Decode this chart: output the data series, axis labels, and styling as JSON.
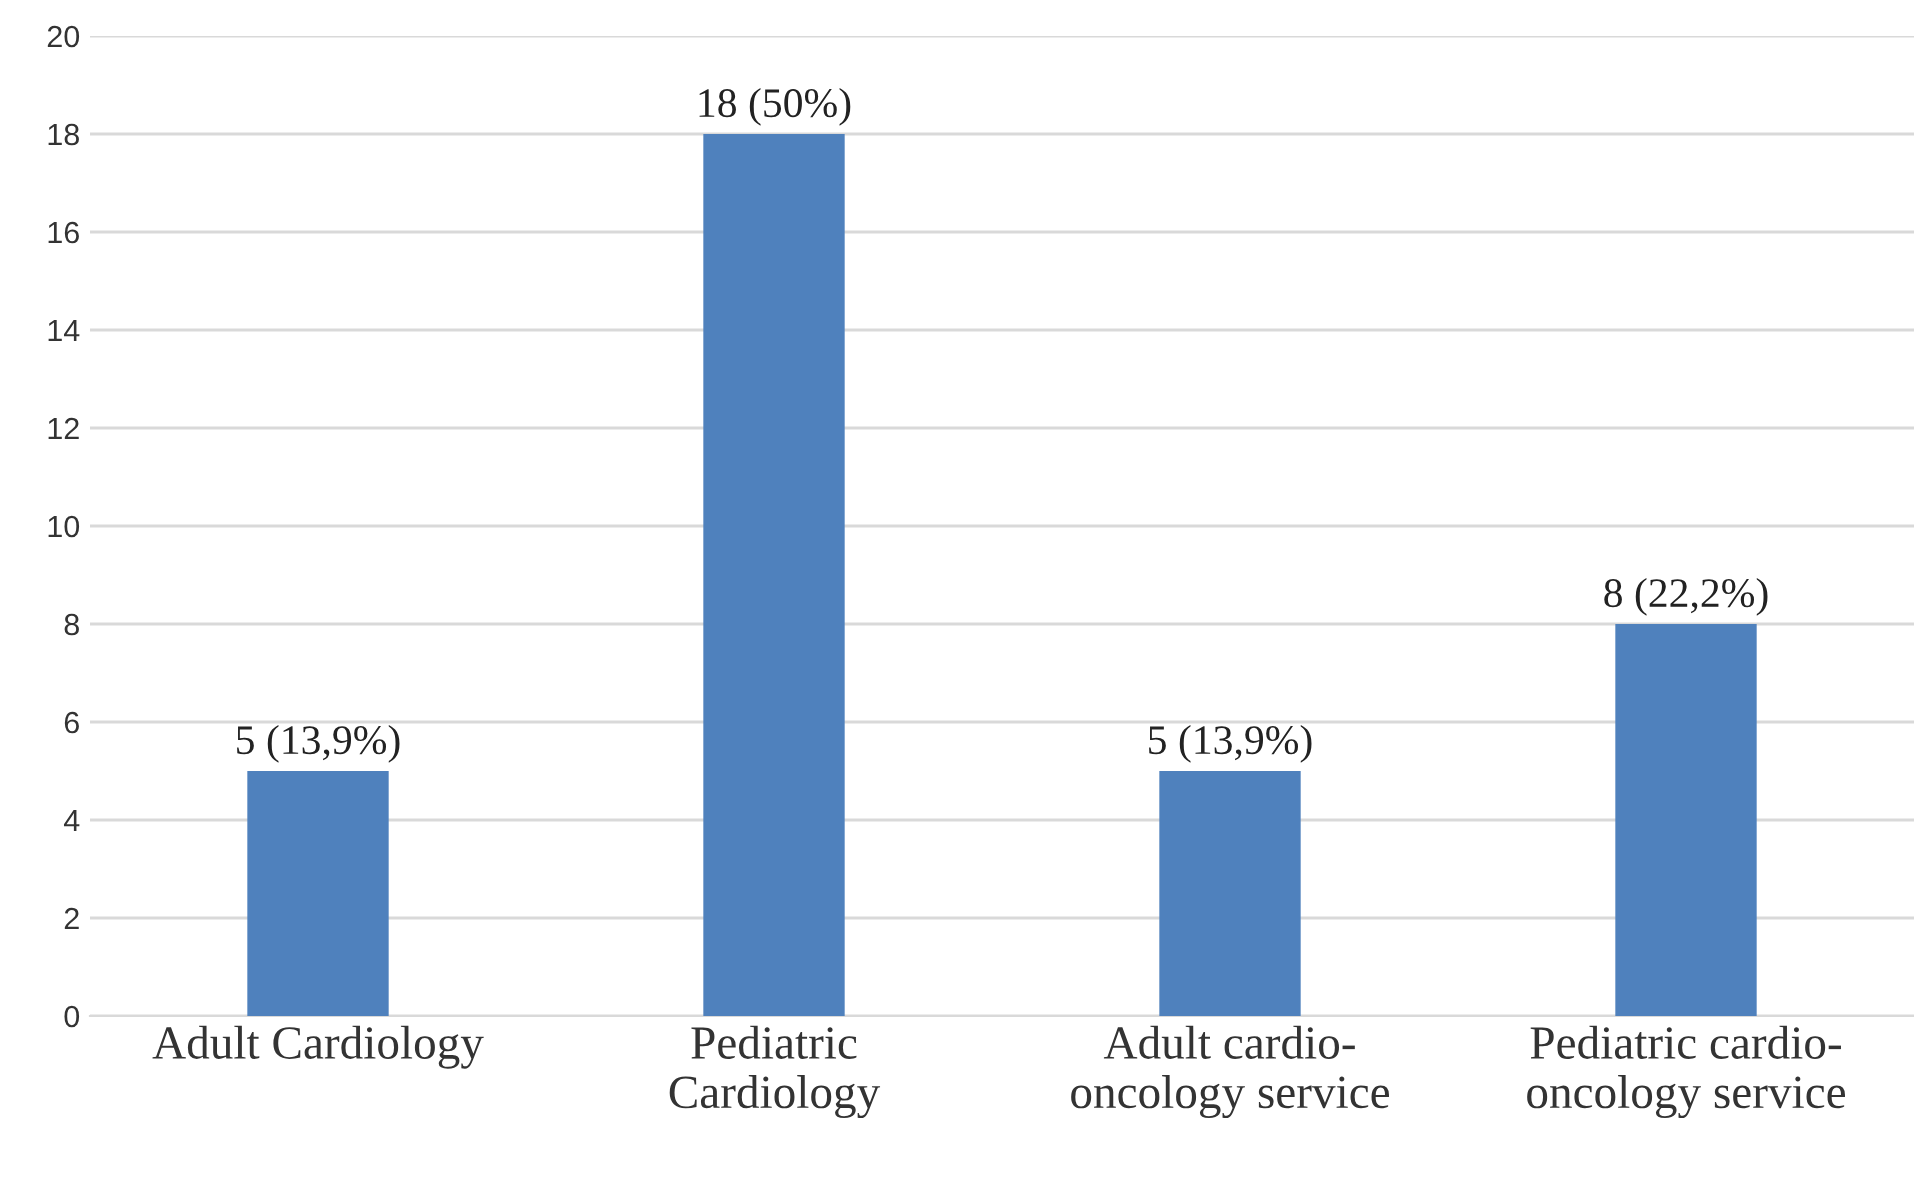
{
  "chart_data": {
    "type": "bar",
    "categories": [
      "Adult Cardiology",
      "Pediatric\nCardiology",
      "Adult cardio-\noncology service",
      "Pediatric cardio-\noncology service"
    ],
    "values": [
      5,
      18,
      5,
      8
    ],
    "color": "#4f81bd",
    "value_labels": [
      "5 (13,9%)",
      "18 (50%)",
      "5 (13,9%)",
      "8 (22,2%)"
    ],
    "ylim": [
      0,
      20
    ],
    "yticks": [
      0,
      2,
      4,
      6,
      8,
      10,
      12,
      14,
      16,
      18,
      20
    ],
    "grid": "y",
    "legend": false
  }
}
